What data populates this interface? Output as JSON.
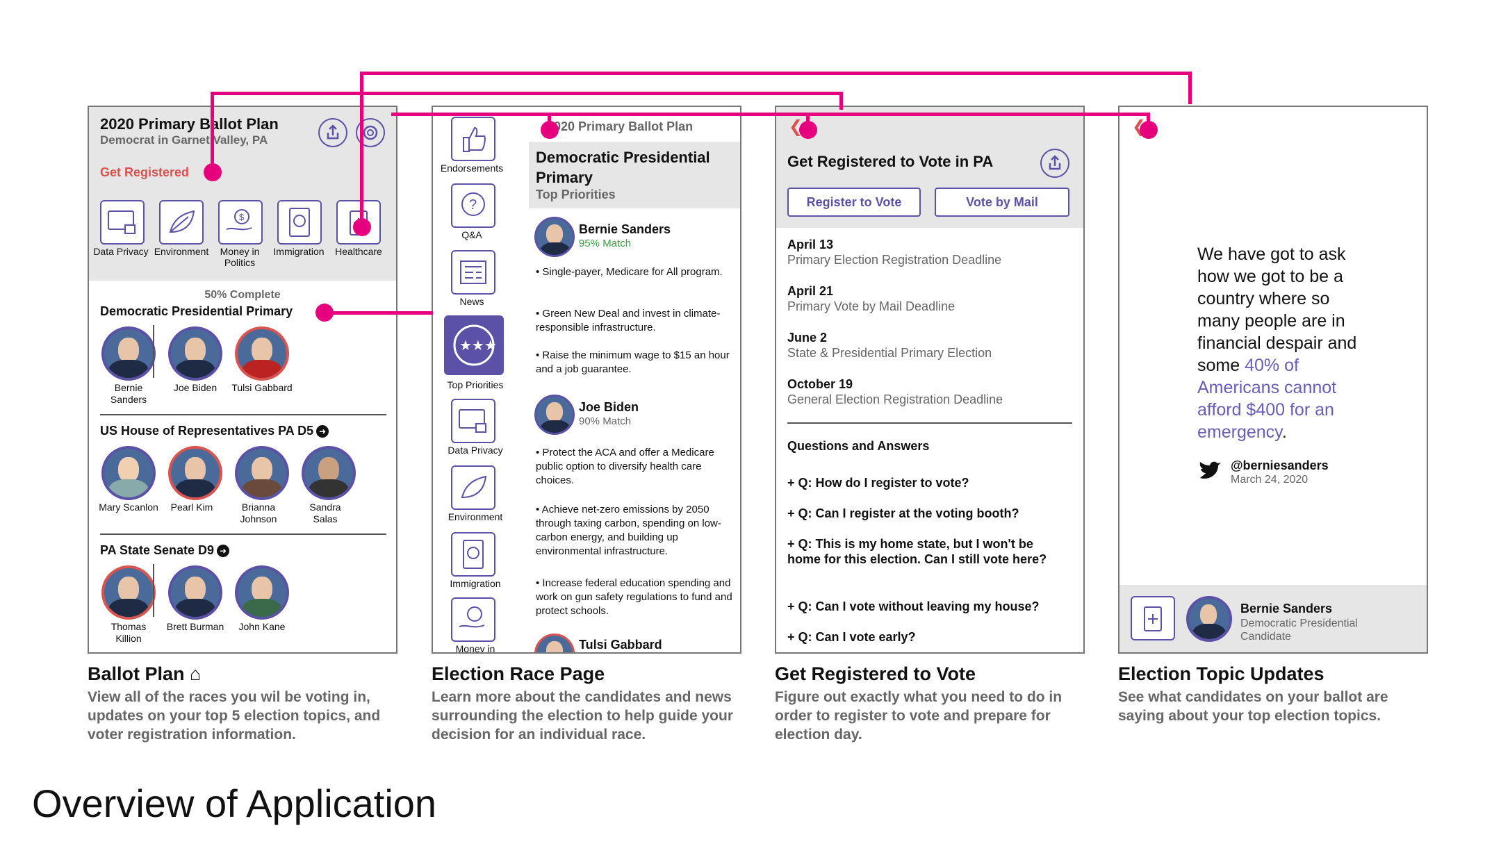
{
  "page_title": "Overview of Application",
  "screens": {
    "ballot_plan": {
      "title": "2020 Primary Ballot Plan",
      "subtitle": "Democrat in Garnet Valley, PA",
      "get_registered": "Get Registered",
      "topics": [
        "Data Privacy",
        "Environment",
        "Money in Politics",
        "Immigration",
        "Healthcare"
      ],
      "progress": "50% Complete",
      "races": [
        {
          "title": "Democratic Presidential Primary",
          "candidates": [
            "Bernie Sanders",
            "Joe Biden",
            "Tulsi Gabbard"
          ]
        },
        {
          "title": "US House of Representatives PA D5",
          "candidates": [
            "Mary Scanlon",
            "Pearl Kim",
            "Brianna Johnson",
            "Sandra Salas"
          ]
        },
        {
          "title": "PA State Senate D9",
          "candidates": [
            "Thomas Killion",
            "Brett Burman",
            "John Kane"
          ]
        }
      ]
    },
    "race_page": {
      "back_label": "2020 Primary Ballot Plan",
      "title": "Democratic Presidential Primary",
      "subtitle": "Top Priorities",
      "nav": [
        "Endorsements",
        "Q&A",
        "News",
        "Top Priorities",
        "Data Privacy",
        "Environment",
        "Immigration",
        "Money in"
      ],
      "candidates": [
        {
          "name": "Bernie Sanders",
          "match": "95% Match",
          "points": [
            "• Single-payer, Medicare for All program.",
            "• Green New Deal and invest in climate-responsible infrastructure.",
            "• Raise the minimum wage to $15 an hour and a job guarantee."
          ]
        },
        {
          "name": "Joe Biden",
          "match": "90% Match",
          "points": [
            "• Protect the ACA and offer a Medicare public option to diversify health care choices.",
            "• Achieve net-zero emissions by 2050 through taxing carbon, spending on low-carbon energy, and building up environmental infrastructure.",
            "• Increase federal education spending and work on gun safety regulations to fund and protect schools."
          ]
        },
        {
          "name": "Tulsi Gabbard"
        }
      ]
    },
    "register": {
      "title": "Get Registered to Vote in PA",
      "btn_register": "Register to Vote",
      "btn_mail": "Vote by Mail",
      "dates": [
        {
          "date": "April 13",
          "desc": "Primary Election Registration Deadline"
        },
        {
          "date": "April 21",
          "desc": "Primary Vote by Mail Deadline"
        },
        {
          "date": "June 2",
          "desc": "State & Presidential Primary Election"
        },
        {
          "date": "October 19",
          "desc": "General Election Registration Deadline"
        }
      ],
      "qa_title": "Questions and Answers",
      "questions": [
        "+ Q: How do I register to vote?",
        "+ Q: Can I register at the voting booth?",
        "+ Q: This is my home state, but I won't be home for this election. Can I still vote here?",
        "+ Q: Can I vote without leaving my house?",
        "+ Q: Can I vote early?"
      ]
    },
    "topic_updates": {
      "quote_plain": "We have got to ask how we got to be a country where so many people are in financial despair and some ",
      "quote_highlight": "40% of Americans cannot afford $400 for an emergency",
      "quote_end": ".",
      "handle": "@berniesanders",
      "date": "March 24, 2020",
      "footer_name": "Bernie Sanders",
      "footer_role": "Democratic Presidential Candidate"
    }
  },
  "captions": [
    {
      "title": "Ballot Plan",
      "desc": "View all of the races you wil be voting in, updates on your top 5 election topics, and voter registration information."
    },
    {
      "title": "Election Race Page",
      "desc": "Learn more about the candidates and news surrounding the election to help guide your decision for an individual race."
    },
    {
      "title": "Get Registered to Vote",
      "desc": "Figure out exactly what you need to do in order to register to vote and prepare for election day."
    },
    {
      "title": "Election Topic Updates",
      "desc": "See what candidates on your ballot are saying about your top election topics."
    }
  ],
  "colors": {
    "accent_magenta": "#e6007e",
    "purple": "#5b52a8",
    "red": "#d9534f",
    "header_gray": "#e6e6e6"
  }
}
